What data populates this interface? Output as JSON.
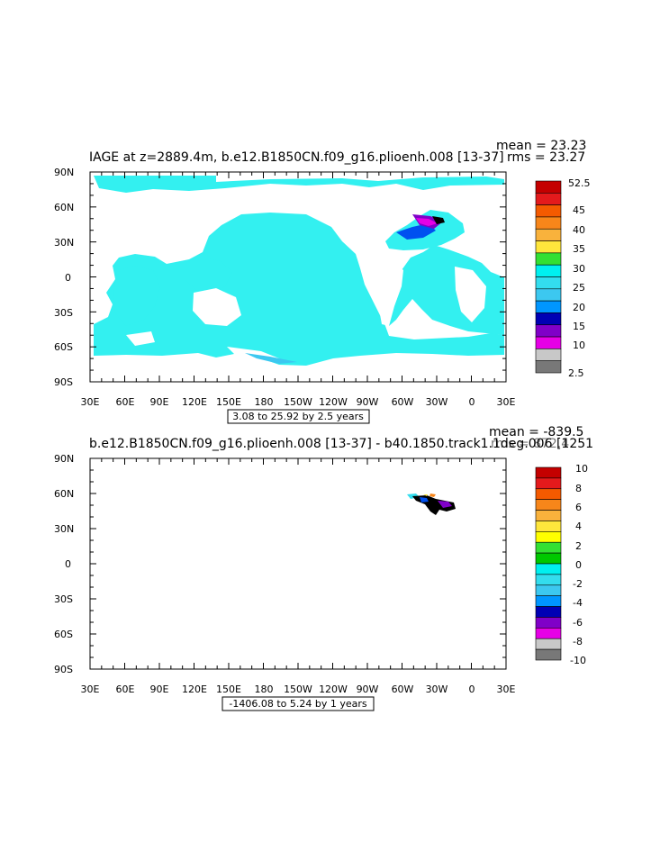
{
  "panel1": {
    "title": "IAGE at z=2889.4m, b.e12.B1850CN.f09_g16.plioenh.008 [13-37]",
    "mean_text": "mean = 23.23",
    "rms_text": "rms = 23.27",
    "range_text": "3.08 to 25.92 by 2.5 years",
    "lat_labels": [
      "90N",
      "60N",
      "30N",
      "0",
      "30S",
      "60S",
      "90S"
    ],
    "lon_labels": [
      "30E",
      "60E",
      "90E",
      "120E",
      "150E",
      "180",
      "150W",
      "120W",
      "90W",
      "60W",
      "30W",
      "0",
      "30E"
    ],
    "colorbar_labels": [
      "52.5",
      "45",
      "40",
      "35",
      "30",
      "25",
      "20",
      "15",
      "10",
      "2.5"
    ]
  },
  "panel2": {
    "title": "b.e12.B1850CN.f09_g16.plioenh.008 [13-37] - b40.1850.track1.1deg.006 [1251",
    "mean_text": "mean = -839.5",
    "rms_text": "rms = 872.4",
    "range_text": "-1406.08 to 5.24 by 1 years",
    "lat_labels": [
      "90N",
      "60N",
      "30N",
      "0",
      "30S",
      "60S",
      "90S"
    ],
    "lon_labels": [
      "30E",
      "60E",
      "90E",
      "120E",
      "150E",
      "180",
      "150W",
      "120W",
      "90W",
      "60W",
      "30W",
      "0",
      "30E"
    ],
    "colorbar_labels": [
      "10",
      "8",
      "6",
      "4",
      "2",
      "0",
      "-2",
      "-4",
      "-6",
      "-8",
      "-10"
    ]
  },
  "colorbar_colors": [
    "#c40000",
    "#e41a1c",
    "#f45a00",
    "#f7861a",
    "#f9b23c",
    "#ffe63c",
    "#ffff00",
    "#33e033",
    "#00c800",
    "#00f0f0",
    "#33ddee",
    "#3cc8f0",
    "#0096ff",
    "#0050f0",
    "#0000b4",
    "#8000c8",
    "#e600e6",
    "#c8c8c8",
    "#787878"
  ],
  "ocean_color": "#33f0f0"
}
